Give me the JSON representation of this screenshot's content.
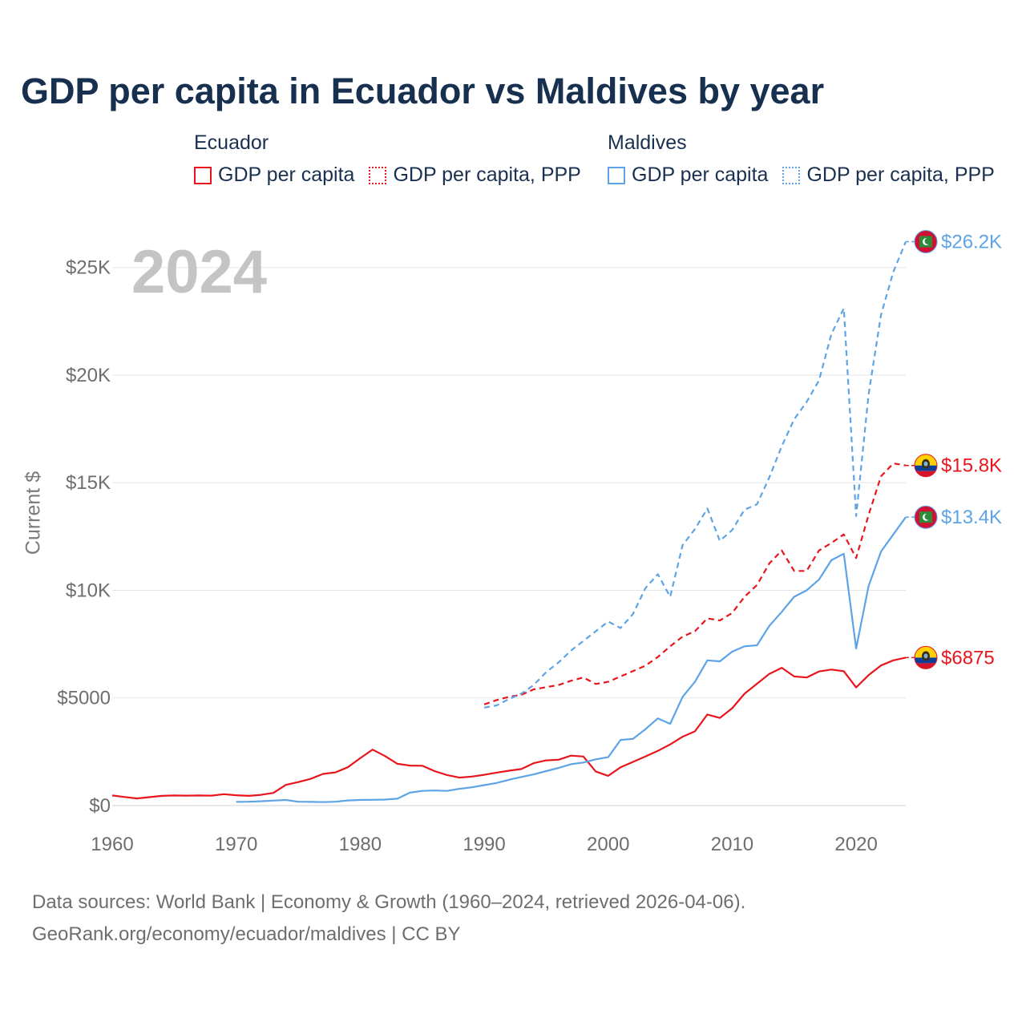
{
  "title": "GDP per capita in Ecuador vs Maldives by year",
  "legend": {
    "groups": [
      {
        "name": "Ecuador",
        "items": [
          "GDP per capita",
          "GDP per capita, PPP"
        ]
      },
      {
        "name": "Maldives",
        "items": [
          "GDP per capita",
          "GDP per capita, PPP"
        ]
      }
    ]
  },
  "year_stamp": "2024",
  "colors": {
    "ecuador": "#e8161c",
    "maldives": "#5da4e6",
    "grid": "#e6e6e6",
    "title": "#17304f"
  },
  "footer": {
    "line1": "Data sources: World Bank | Economy & Growth (1960–2024, retrieved 2026-04-06).",
    "line2": "GeoRank.org/economy/ecuador/maldives | CC BY"
  },
  "chart_data": {
    "type": "line",
    "title": "GDP per capita in Ecuador vs Maldives by year",
    "xlabel": "",
    "ylabel": "Current $",
    "xlim": [
      1960,
      2024
    ],
    "ylim": [
      0,
      27000
    ],
    "xticks": [
      1960,
      1970,
      1980,
      1990,
      2000,
      2010,
      2020
    ],
    "xtick_labels": [
      "1960",
      "1970",
      "1980",
      "1990",
      "2000",
      "2010",
      "2020"
    ],
    "yticks": [
      0,
      5000,
      10000,
      15000,
      20000,
      25000
    ],
    "ytick_labels": [
      "$0",
      "$5000",
      "$10K",
      "$15K",
      "$20K",
      "$25K"
    ],
    "grid": true,
    "series": [
      {
        "name": "Ecuador — GDP per capita",
        "country": "Ecuador",
        "metric": "GDP per capita",
        "style": "solid",
        "end_label": "$6875",
        "flag": "ecuador-flag-icon",
        "x": [
          1960,
          1961,
          1962,
          1963,
          1964,
          1965,
          1966,
          1967,
          1968,
          1969,
          1970,
          1971,
          1972,
          1973,
          1974,
          1975,
          1976,
          1977,
          1978,
          1979,
          1980,
          1981,
          1982,
          1983,
          1984,
          1985,
          1986,
          1987,
          1988,
          1989,
          1990,
          1991,
          1992,
          1993,
          1994,
          1995,
          1996,
          1997,
          1998,
          1999,
          2000,
          2001,
          2002,
          2003,
          2004,
          2005,
          2006,
          2007,
          2008,
          2009,
          2010,
          2011,
          2012,
          2013,
          2014,
          2015,
          2016,
          2017,
          2018,
          2019,
          2020,
          2021,
          2022,
          2023,
          2024
        ],
        "values": [
          470,
          400,
          330,
          390,
          450,
          470,
          460,
          470,
          460,
          530,
          480,
          450,
          500,
          590,
          960,
          1090,
          1240,
          1470,
          1540,
          1780,
          2200,
          2600,
          2300,
          1940,
          1860,
          1850,
          1600,
          1420,
          1300,
          1350,
          1430,
          1530,
          1620,
          1700,
          1970,
          2100,
          2130,
          2320,
          2280,
          1580,
          1380,
          1780,
          2030,
          2280,
          2540,
          2840,
          3200,
          3450,
          4230,
          4070,
          4520,
          5200,
          5660,
          6120,
          6400,
          6000,
          5950,
          6230,
          6320,
          6240,
          5490,
          6060,
          6510,
          6750,
          6875
        ]
      },
      {
        "name": "Ecuador — GDP per capita, PPP",
        "country": "Ecuador",
        "metric": "GDP per capita, PPP",
        "style": "dashed",
        "end_label": "$15.8K",
        "flag": "ecuador-flag-icon",
        "x": [
          1990,
          1991,
          1992,
          1993,
          1994,
          1995,
          1996,
          1997,
          1998,
          1999,
          2000,
          2001,
          2002,
          2003,
          2004,
          2005,
          2006,
          2007,
          2008,
          2009,
          2010,
          2011,
          2012,
          2013,
          2014,
          2015,
          2016,
          2017,
          2018,
          2019,
          2020,
          2021,
          2022,
          2023,
          2024
        ],
        "values": [
          4700,
          4900,
          5050,
          5150,
          5400,
          5500,
          5600,
          5800,
          5950,
          5650,
          5750,
          6000,
          6250,
          6500,
          6900,
          7400,
          7850,
          8100,
          8700,
          8600,
          8950,
          9700,
          10250,
          11250,
          11850,
          10900,
          10900,
          11850,
          12200,
          12600,
          11500,
          13500,
          15300,
          15900,
          15800
        ]
      },
      {
        "name": "Maldives — GDP per capita",
        "country": "Maldives",
        "metric": "GDP per capita",
        "style": "solid",
        "end_label": "$13.4K",
        "flag": "maldives-flag-icon",
        "x": [
          1970,
          1971,
          1972,
          1973,
          1974,
          1975,
          1976,
          1977,
          1978,
          1979,
          1980,
          1981,
          1982,
          1983,
          1984,
          1985,
          1986,
          1987,
          1988,
          1989,
          1990,
          1991,
          1992,
          1993,
          1994,
          1995,
          1996,
          1997,
          1998,
          1999,
          2000,
          2001,
          2002,
          2003,
          2004,
          2005,
          2006,
          2007,
          2008,
          2009,
          2010,
          2011,
          2012,
          2013,
          2014,
          2015,
          2016,
          2017,
          2018,
          2019,
          2020,
          2021,
          2022,
          2023,
          2024
        ],
        "values": [
          170,
          180,
          200,
          230,
          260,
          180,
          170,
          160,
          180,
          240,
          260,
          270,
          280,
          320,
          600,
          680,
          700,
          680,
          780,
          850,
          950,
          1050,
          1200,
          1330,
          1450,
          1600,
          1750,
          1920,
          2000,
          2150,
          2250,
          3050,
          3100,
          3550,
          4050,
          3800,
          5050,
          5750,
          6750,
          6700,
          7150,
          7400,
          7450,
          8350,
          9000,
          9700,
          10000,
          10500,
          11400,
          11700,
          7300,
          10200,
          11800,
          12600,
          13400
        ]
      },
      {
        "name": "Maldives — GDP per capita, PPP",
        "country": "Maldives",
        "metric": "GDP per capita, PPP",
        "style": "dashed",
        "end_label": "$26.2K",
        "flag": "maldives-flag-icon",
        "x": [
          1990,
          1991,
          1992,
          1993,
          1994,
          1995,
          1996,
          1997,
          1998,
          1999,
          2000,
          2001,
          2002,
          2003,
          2004,
          2005,
          2006,
          2007,
          2008,
          2009,
          2010,
          2011,
          2012,
          2013,
          2014,
          2015,
          2016,
          2017,
          2018,
          2019,
          2020,
          2021,
          2022,
          2023,
          2024
        ],
        "values": [
          4550,
          4650,
          4950,
          5200,
          5600,
          6200,
          6650,
          7200,
          7650,
          8100,
          8550,
          8250,
          8900,
          10100,
          10750,
          9700,
          12100,
          12850,
          13800,
          12300,
          12800,
          13750,
          14000,
          15250,
          16700,
          17950,
          18750,
          19750,
          21900,
          23100,
          13450,
          19100,
          22800,
          24800,
          26200
        ]
      }
    ]
  }
}
